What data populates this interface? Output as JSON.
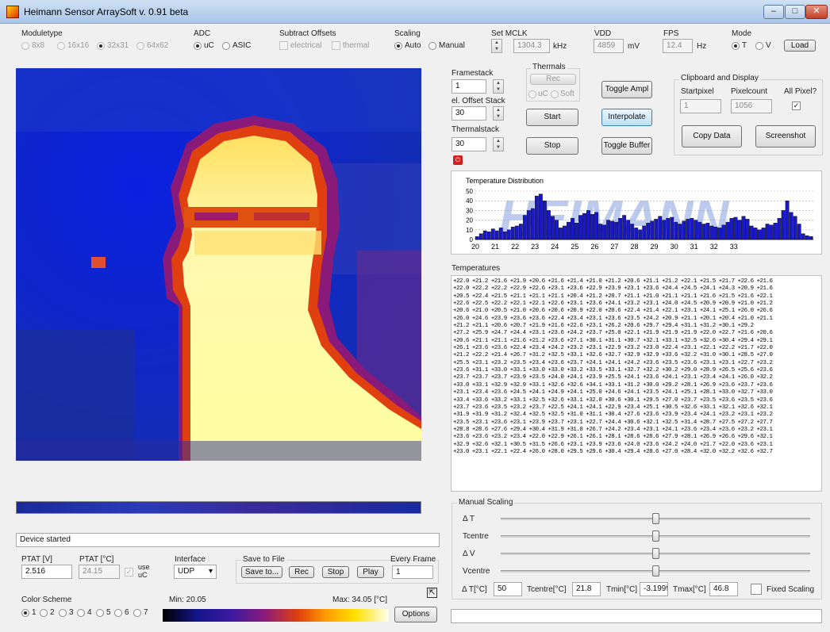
{
  "window": {
    "title": "Heimann Sensor ArraySoft v. 0.91 beta",
    "min": "–",
    "max": "□",
    "close": "✕"
  },
  "colors": {
    "accent_blue": "#1e3fb0",
    "hot_yellow": "#ffffb0",
    "orange": "#e05a10"
  },
  "moduletype": {
    "label": "Moduletype",
    "options": [
      "8x8",
      "16x16",
      "32x31",
      "64x62"
    ],
    "selected": "32x31"
  },
  "adc": {
    "label": "ADC",
    "options": [
      "uC",
      "ASIC"
    ],
    "selected": "uC"
  },
  "subtract_offsets": {
    "label": "Subtract Offsets",
    "electrical": "electrical",
    "thermal": "thermal"
  },
  "scaling": {
    "label": "Scaling",
    "options": [
      "Auto",
      "Manual"
    ],
    "selected": "Auto"
  },
  "set_mclk": {
    "label": "Set MCLK",
    "value": "1304.3",
    "unit": "kHz"
  },
  "vdd": {
    "label": "VDD",
    "value": "4859",
    "unit": "mV"
  },
  "fps": {
    "label": "FPS",
    "value": "12.4",
    "unit": "Hz"
  },
  "mode": {
    "label": "Mode",
    "options": [
      "T",
      "V"
    ],
    "selected": "T",
    "load": "Load"
  },
  "framestack": {
    "label": "Framestack",
    "value": "1"
  },
  "el_offset_stack": {
    "label": "el. Offset Stack",
    "value": "30"
  },
  "thermalstack": {
    "label": "Thermalstack",
    "value": "30"
  },
  "thermals": {
    "label": "Thermals",
    "rec": "Rec",
    "uc": "uC",
    "soft": "Soft"
  },
  "buttons": {
    "start": "Start",
    "stop": "Stop",
    "toggle_ampl": "Toggle Ampl",
    "interpolate": "Interpolate",
    "toggle_buffer": "Toggle Buffer",
    "copy_data": "Copy Data",
    "screenshot": "Screenshot",
    "options": "Options"
  },
  "clipboard": {
    "label": "Clipboard and Display",
    "startpixel_label": "Startpixel",
    "startpixel": "1",
    "pixelcount_label": "Pixelcount",
    "pixelcount": "1056",
    "allpixel_label": "All Pixel?",
    "allpixel_checked": true,
    "check": "✓"
  },
  "chart_data": {
    "type": "bar",
    "title": "Temperature Distribution",
    "ylim": [
      0,
      50
    ],
    "yticks": [
      "50",
      "40",
      "30",
      "20",
      "10",
      "0"
    ],
    "xticks": [
      "20",
      "21",
      "22",
      "23",
      "24",
      "25",
      "26",
      "27",
      "28",
      "29",
      "30",
      "31",
      "32",
      "33"
    ],
    "watermark": "HEIMANN",
    "x_start": 20,
    "bin_width": 0.2,
    "values": [
      3,
      6,
      9,
      8,
      11,
      9,
      12,
      8,
      10,
      13,
      14,
      16,
      25,
      30,
      32,
      45,
      47,
      40,
      30,
      24,
      20,
      12,
      14,
      18,
      22,
      17,
      25,
      27,
      30,
      26,
      28,
      16,
      15,
      20,
      19,
      18,
      22,
      25,
      20,
      16,
      12,
      10,
      14,
      17,
      19,
      21,
      24,
      20,
      22,
      23,
      18,
      16,
      19,
      21,
      22,
      20,
      18,
      16,
      17,
      14,
      13,
      12,
      15,
      18,
      22,
      23,
      20,
      24,
      21,
      14,
      12,
      10,
      12,
      16,
      15,
      17,
      22,
      30,
      40,
      28,
      24,
      16,
      6,
      4,
      3
    ]
  },
  "temperatures": {
    "label": "Temperatures",
    "rows": [
      "+22.0 +21.2 +21.6 +21.9 +20.6 +21.6 +21.4 +21.0 +21.2 +20.6 +21.1 +21.2 +22.1 +21.5 +21.7 +22.6 +21.6",
      "+22.0 +22.2 +22.2 +22.9 +22.6 +23.1 +23.6 +22.9 +23.9 +23.1 +23.6 +24.4 +24.5 +24.1 +24.3 +20.9 +21.6",
      "+20.5 +22.4 +21.5 +21.1 +21.1 +21.1 +20.4 +21.2 +20.7 +21.1 +21.0 +21.1 +21.1 +21.6 +21.5 +21.6 +22.1",
      "+22.6 +22.5 +22.2 +22.1 +22.1 +22.6 +23.1 +23.6 +24.1 +23.2 +23.1 +24.0 +24.5 +20.9 +20.9 +21.0 +21.2",
      "+20.6 +21.0 +20.5 +21.0 +20.6 +20.6 +20.9 +22.0 +20.6 +22.4 +21.4 +22.1 +23.1 +24.1 +25.1 +26.0 +26.6",
      "+26.0 +24.6 +23.9 +23.6 +23.6 +22.4 +23.4 +23.1 +23.6 +23.5 +24.2 +20.9 +21.1 +20.1 +20.4 +21.0 +21.1",
      "+21.2 +21.1 +20.6 +20.7 +21.9 +21.6 +22.6 +23.1 +26.2 +20.6 +29.7 +29.4 +31.1 +31.2 +30.1 +29.2",
      "+27.2 +25.9 +24.7 +24.4 +23.1 +23.6 +24.2 +23.7 +25.0 +22.1 +21.9 +21.9 +21.9 +22.0 +22.7 +21.6 +20.6",
      "+20.6 +21.1 +21.1 +21.6 +21.2 +23.6 +27.1 +30.1 +31.1 +30.7 +32.1 +33.1 +32.5 +32.6 +30.4 +29.4 +29.1",
      "+26.1 +23.6 +23.6 +22.4 +23.4 +24.2 +23.2 +23.1 +22.9 +23.2 +23.0 +22.4 +23.1 +22.1 +22.2 +21.7 +22.0",
      "+21.2 +22.2 +21.4 +26.7 +31.2 +32.5 +33.1 +32.6 +32.7 +32.9 +32.9 +33.6 +32.2 +31.0 +30.1 +28.5 +27.0",
      "+25.5 +23.1 +23.2 +23.5 +23.4 +23.6 +23.7 +24.1 +24.1 +24.2 +23.6 +23.5 +23.6 +23.1 +23.1 +22.7 +23.2",
      "+23.6 +31.1 +33.0 +33.1 +33.0 +33.0 +33.2 +33.5 +33.1 +32.7 +32.2 +30.2 +29.0 +28.9 +26.5 +25.6 +23.6",
      "+23.7 +23.7 +23.7 +23.9 +23.5 +24.0 +24.1 +23.9 +25.5 +24.1 +23.6 +24.1 +23.1 +23.4 +24.1 +26.0 +32.2",
      "+33.0 +33.1 +32.9 +32.9 +33.1 +32.6 +32.6 +34.1 +33.1 +31.2 +30.0 +29.2 +28.1 +26.9 +23.6 +23.7 +23.6",
      "+23.1 +23.4 +23.6 +24.5 +24.1 +24.9 +24.1 +25.0 +24.6 +24.1 +23.5 +24.1 +25.1 +28.1 +33.0 +32.7 +33.0",
      "+33.4 +33.6 +33.2 +33.1 +32.5 +32.6 +33.1 +32.0 +30.6 +30.1 +29.5 +27.0 +23.7 +23.5 +23.6 +23.5 +23.6",
      "+23.7 +23.6 +23.5 +23.2 +23.7 +22.5 +24.1 +24.1 +22.9 +23.4 +25.1 +30.5 +32.6 +33.1 +32.1 +32.6 +32.1",
      "+31.9 +31.9 +31.2 +32.4 +32.5 +32.5 +31.0 +31.1 +30.4 +27.6 +23.6 +23.9 +23.4 +24.1 +23.2 +23.1 +23.2",
      "+23.5 +23.1 +23.6 +23.1 +23.9 +23.7 +23.1 +22.7 +24.4 +30.6 +32.1 +32.5 +31.4 +28.7 +27.5 +27.2 +27.7",
      "+28.8 +28.6 +27.6 +29.4 +30.4 +31.9 +31.0 +26.7 +24.2 +23.4 +23.1 +24.1 +23.6 +23.4 +23.6 +23.2 +23.1",
      "+23.6 +23.6 +23.2 +23.4 +22.0 +22.9 +26.1 +26.1 +28.1 +28.6 +28.6 +27.9 +28.1 +26.9 +26.6 +29.6 +32.1",
      "+32.9 +32.6 +32.1 +30.5 +31.5 +26.6 +23.1 +23.9 +23.6 +24.0 +23.6 +24.2 +24.0 +21.7 +22.0 +23.6 +23.1",
      "+23.0 +23.1 +22.1 +22.4 +26.0 +28.0 +29.5 +29.6 +30.4 +29.4 +28.6 +27.0 +28.4 +32.0 +32.2 +32.6 +32.7"
    ]
  },
  "manual_scaling": {
    "label": "Manual Scaling",
    "delta_t": "Δ T",
    "tcentre": "Tcentre",
    "delta_v": "Δ V",
    "vcentre": "Vcentre",
    "levels": {
      "delta_t": 0.5,
      "tcentre": 0.5,
      "delta_v": 0.5,
      "vcentre": 0.5
    },
    "dt_label": "Δ T[°C]",
    "dt_value": "50",
    "tc_label": "Tcentre[°C]",
    "tc_value": "21.8",
    "tmin_label": "Tmin[°C]",
    "tmin_value": "-3.1999",
    "tmax_label": "Tmax[°C]",
    "tmax_value": "46.8",
    "fixed_label": "Fixed Scaling"
  },
  "status": {
    "text": "Device started"
  },
  "ptat": {
    "v_label": "PTAT [V]",
    "v_value": "2.516",
    "c_label": "PTAT [°C]",
    "c_value": "24.15",
    "use_label": "use",
    "uc_label": "uC",
    "check": "✓"
  },
  "interface": {
    "label": "Interface",
    "value": "UDP",
    "arrow": "▾"
  },
  "save_to_file": {
    "label": "Save to File",
    "save_to": "Save to...",
    "rec": "Rec",
    "stop": "Stop",
    "play": "Play"
  },
  "every_frame": {
    "label": "Every Frame",
    "value": "1"
  },
  "color_scheme": {
    "label": "Color Scheme",
    "options": [
      "1",
      "2",
      "3",
      "4",
      "5",
      "6",
      "7"
    ],
    "selected": "1"
  },
  "range": {
    "min": "Min: 20.05",
    "max": "Max: 34.05 [°C]"
  },
  "glyphs": {
    "up": "▲",
    "down": "▼",
    "expand": "⇱",
    "power": "⏻"
  }
}
